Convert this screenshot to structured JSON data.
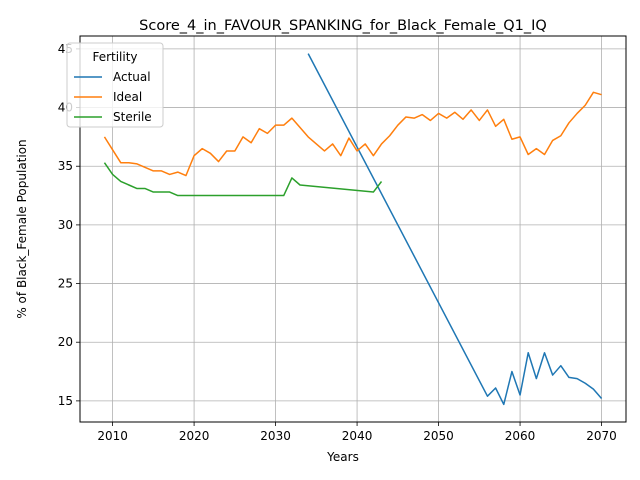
{
  "chart_data": {
    "type": "line",
    "title": "Score_4_in_FAVOUR_SPANKING_for_Black_Female_Q1_IQ",
    "xlabel": "Years",
    "ylabel": "% of Black_Female Population",
    "xlim": [
      2006,
      2073
    ],
    "ylim": [
      13.2,
      46.1
    ],
    "xticks": [
      2010,
      2020,
      2030,
      2040,
      2050,
      2060,
      2070
    ],
    "yticks": [
      15,
      20,
      25,
      30,
      35,
      40,
      45
    ],
    "grid": true,
    "legend": {
      "title": "Fertility",
      "placement": "top-left"
    },
    "series": [
      {
        "name": "Actual",
        "color": "#1f77b4",
        "points": [
          [
            2034,
            44.6
          ],
          [
            2056,
            15.4
          ],
          [
            2057,
            16.1
          ],
          [
            2058,
            14.7
          ],
          [
            2059,
            17.5
          ],
          [
            2060,
            15.5
          ],
          [
            2061,
            19.1
          ],
          [
            2062,
            16.9
          ],
          [
            2063,
            19.1
          ],
          [
            2064,
            17.2
          ],
          [
            2065,
            18.0
          ],
          [
            2066,
            17.0
          ],
          [
            2067,
            16.9
          ],
          [
            2068,
            16.5
          ],
          [
            2069,
            16.0
          ],
          [
            2070,
            15.2
          ]
        ]
      },
      {
        "name": "Ideal",
        "color": "#ff7f0e",
        "points": [
          [
            2009,
            37.5
          ],
          [
            2010,
            36.4
          ],
          [
            2011,
            35.3
          ],
          [
            2012,
            35.3
          ],
          [
            2013,
            35.2
          ],
          [
            2014,
            34.9
          ],
          [
            2015,
            34.6
          ],
          [
            2016,
            34.6
          ],
          [
            2017,
            34.3
          ],
          [
            2018,
            34.5
          ],
          [
            2019,
            34.2
          ],
          [
            2020,
            35.9
          ],
          [
            2021,
            36.5
          ],
          [
            2022,
            36.1
          ],
          [
            2023,
            35.4
          ],
          [
            2024,
            36.3
          ],
          [
            2025,
            36.3
          ],
          [
            2026,
            37.5
          ],
          [
            2027,
            37.0
          ],
          [
            2028,
            38.2
          ],
          [
            2029,
            37.8
          ],
          [
            2030,
            38.5
          ],
          [
            2031,
            38.5
          ],
          [
            2032,
            39.1
          ],
          [
            2033,
            38.3
          ],
          [
            2034,
            37.5
          ],
          [
            2035,
            36.9
          ],
          [
            2036,
            36.3
          ],
          [
            2037,
            36.9
          ],
          [
            2038,
            35.9
          ],
          [
            2039,
            37.4
          ],
          [
            2040,
            36.3
          ],
          [
            2041,
            36.9
          ],
          [
            2042,
            35.9
          ],
          [
            2043,
            36.9
          ],
          [
            2044,
            37.6
          ],
          [
            2045,
            38.5
          ],
          [
            2046,
            39.2
          ],
          [
            2047,
            39.1
          ],
          [
            2048,
            39.4
          ],
          [
            2049,
            38.9
          ],
          [
            2050,
            39.5
          ],
          [
            2051,
            39.1
          ],
          [
            2052,
            39.6
          ],
          [
            2053,
            39.0
          ],
          [
            2054,
            39.8
          ],
          [
            2055,
            38.9
          ],
          [
            2056,
            39.8
          ],
          [
            2057,
            38.4
          ],
          [
            2058,
            39.0
          ],
          [
            2059,
            37.3
          ],
          [
            2060,
            37.5
          ],
          [
            2061,
            36.0
          ],
          [
            2062,
            36.5
          ],
          [
            2063,
            36.0
          ],
          [
            2064,
            37.2
          ],
          [
            2065,
            37.6
          ],
          [
            2066,
            38.7
          ],
          [
            2067,
            39.5
          ],
          [
            2068,
            40.2
          ],
          [
            2069,
            41.3
          ],
          [
            2070,
            41.1
          ]
        ]
      },
      {
        "name": "Sterile",
        "color": "#2ca02c",
        "points": [
          [
            2009,
            35.3
          ],
          [
            2010,
            34.3
          ],
          [
            2011,
            33.7
          ],
          [
            2012,
            33.4
          ],
          [
            2013,
            33.1
          ],
          [
            2014,
            33.1
          ],
          [
            2015,
            32.8
          ],
          [
            2016,
            32.8
          ],
          [
            2017,
            32.8
          ],
          [
            2018,
            32.5
          ],
          [
            2019,
            32.5
          ],
          [
            2020,
            32.5
          ],
          [
            2021,
            32.5
          ],
          [
            2022,
            32.5
          ],
          [
            2023,
            32.5
          ],
          [
            2024,
            32.5
          ],
          [
            2025,
            32.5
          ],
          [
            2026,
            32.5
          ],
          [
            2027,
            32.5
          ],
          [
            2028,
            32.5
          ],
          [
            2029,
            32.5
          ],
          [
            2030,
            32.5
          ],
          [
            2031,
            32.5
          ],
          [
            2032,
            34.0
          ],
          [
            2033,
            33.4
          ],
          [
            2042,
            32.8
          ],
          [
            2043,
            33.7
          ]
        ]
      }
    ]
  }
}
